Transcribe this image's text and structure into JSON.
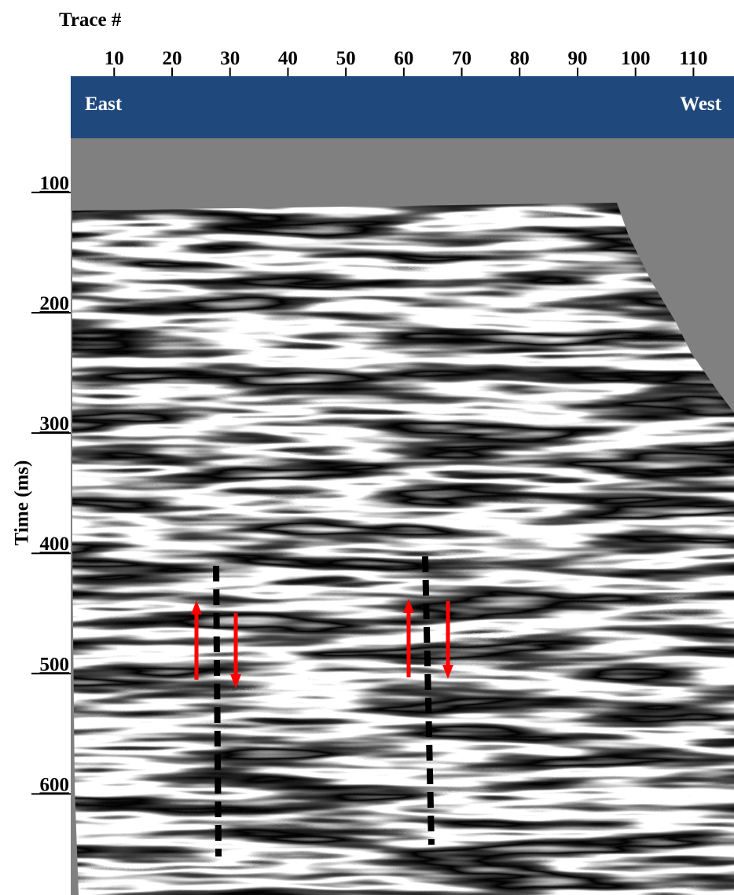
{
  "chart_data": {
    "type": "seismic-section",
    "x_label": "Trace #",
    "y_label": "Time (ms)",
    "left_label": "East",
    "right_label": "West",
    "xlim": [
      2.5,
      117
    ],
    "xticks": [
      10,
      20,
      30,
      40,
      50,
      60,
      70,
      80,
      90,
      100,
      110
    ],
    "ylim": [
      55,
      684
    ],
    "yticks": [
      100,
      200,
      300,
      400,
      500,
      600
    ]
  }
}
